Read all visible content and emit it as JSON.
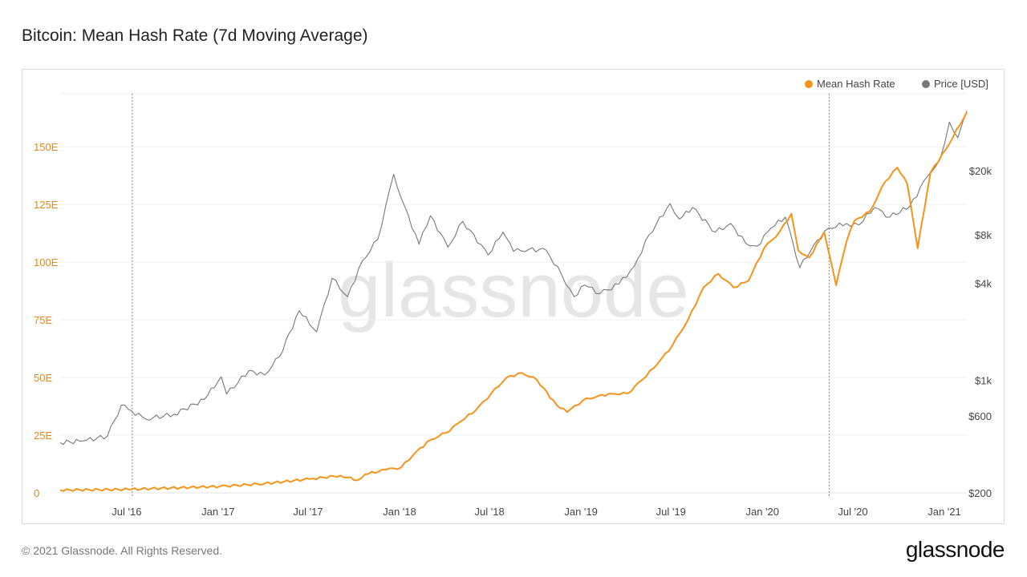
{
  "title": "Bitcoin: Mean Hash Rate (7d Moving Average)",
  "footer": "© 2021 Glassnode. All Rights Reserved.",
  "logo": "glassnode",
  "watermark": "glassnode",
  "chart_data": {
    "type": "line",
    "title": "Bitcoin: Mean Hash Rate (7d Moving Average)",
    "x_range": [
      "2016-02-15",
      "2021-02-12"
    ],
    "x_ticks": [
      {
        "date": "2016-07-01",
        "label": "Jul '16"
      },
      {
        "date": "2017-01-01",
        "label": "Jan '17"
      },
      {
        "date": "2017-07-01",
        "label": "Jul '17"
      },
      {
        "date": "2018-01-01",
        "label": "Jan '18"
      },
      {
        "date": "2018-07-01",
        "label": "Jul '18"
      },
      {
        "date": "2019-01-01",
        "label": "Jan '19"
      },
      {
        "date": "2019-07-01",
        "label": "Jul '19"
      },
      {
        "date": "2020-01-01",
        "label": "Jan '20"
      },
      {
        "date": "2020-07-01",
        "label": "Jul '20"
      },
      {
        "date": "2021-01-01",
        "label": "Jan '21"
      }
    ],
    "y_left": {
      "scale": "linear",
      "range": [
        0,
        173
      ],
      "ticks": [
        {
          "value": 0,
          "label": "0"
        },
        {
          "value": 25,
          "label": "25E"
        },
        {
          "value": 50,
          "label": "50E"
        },
        {
          "value": 75,
          "label": "75E"
        },
        {
          "value": 100,
          "label": "100E"
        },
        {
          "value": 125,
          "label": "125E"
        },
        {
          "value": 150,
          "label": "150E"
        }
      ],
      "color": "#f7931a"
    },
    "y_right": {
      "scale": "log",
      "range": [
        200,
        60000
      ],
      "ticks": [
        {
          "value": 200,
          "label": "$200"
        },
        {
          "value": 600,
          "label": "$600"
        },
        {
          "value": 1000,
          "label": "$1k"
        },
        {
          "value": 4000,
          "label": "$4k"
        },
        {
          "value": 8000,
          "label": "$8k"
        },
        {
          "value": 20000,
          "label": "$20k"
        }
      ],
      "color": "#555555"
    },
    "grid": true,
    "legend_position": "top-right",
    "vertical_markers": [
      "2016-07-09",
      "2020-05-11"
    ],
    "series": [
      {
        "name": "Mean Hash Rate",
        "axis": "left",
        "color": "#f7931a",
        "points": [
          [
            "2016-02-15",
            1.2
          ],
          [
            "2016-07-01",
            1.5
          ],
          [
            "2017-01-01",
            2.8
          ],
          [
            "2017-04-01",
            4
          ],
          [
            "2017-07-01",
            6
          ],
          [
            "2017-09-01",
            7.5
          ],
          [
            "2017-10-05",
            5.5
          ],
          [
            "2017-10-20",
            8
          ],
          [
            "2017-12-01",
            10
          ],
          [
            "2018-01-01",
            11
          ],
          [
            "2018-02-01",
            18
          ],
          [
            "2018-03-01",
            23
          ],
          [
            "2018-04-01",
            26
          ],
          [
            "2018-05-01",
            31
          ],
          [
            "2018-06-01",
            36
          ],
          [
            "2018-07-01",
            43
          ],
          [
            "2018-08-01",
            50
          ],
          [
            "2018-09-01",
            52
          ],
          [
            "2018-10-01",
            49
          ],
          [
            "2018-11-10",
            38
          ],
          [
            "2018-12-01",
            35
          ],
          [
            "2019-01-01",
            40
          ],
          [
            "2019-02-01",
            42
          ],
          [
            "2019-03-01",
            43
          ],
          [
            "2019-04-01",
            43
          ],
          [
            "2019-05-01",
            49
          ],
          [
            "2019-06-01",
            56
          ],
          [
            "2019-07-01",
            64
          ],
          [
            "2019-08-01",
            75
          ],
          [
            "2019-09-01",
            89
          ],
          [
            "2019-10-01",
            95
          ],
          [
            "2019-11-01",
            89
          ],
          [
            "2019-12-01",
            92
          ],
          [
            "2020-01-01",
            106
          ],
          [
            "2020-02-01",
            113
          ],
          [
            "2020-02-25",
            121
          ],
          [
            "2020-03-10",
            105
          ],
          [
            "2020-04-01",
            102
          ],
          [
            "2020-05-01",
            113
          ],
          [
            "2020-05-25",
            90
          ],
          [
            "2020-06-15",
            109
          ],
          [
            "2020-07-01",
            118
          ],
          [
            "2020-08-01",
            122
          ],
          [
            "2020-09-01",
            135
          ],
          [
            "2020-09-25",
            141
          ],
          [
            "2020-10-15",
            134
          ],
          [
            "2020-11-05",
            106
          ],
          [
            "2020-12-01",
            139
          ],
          [
            "2021-01-01",
            149
          ],
          [
            "2021-02-12",
            165
          ]
        ]
      },
      {
        "name": "Price [USD]",
        "axis": "right",
        "color": "#777777",
        "points": [
          [
            "2016-02-15",
            410
          ],
          [
            "2016-04-01",
            420
          ],
          [
            "2016-05-20",
            450
          ],
          [
            "2016-06-17",
            700
          ],
          [
            "2016-07-01",
            660
          ],
          [
            "2016-08-05",
            575
          ],
          [
            "2016-10-01",
            615
          ],
          [
            "2016-12-01",
            760
          ],
          [
            "2017-01-04",
            1050
          ],
          [
            "2017-01-15",
            820
          ],
          [
            "2017-03-01",
            1150
          ],
          [
            "2017-04-01",
            1080
          ],
          [
            "2017-05-01",
            1400
          ],
          [
            "2017-06-10",
            2700
          ],
          [
            "2017-07-15",
            2000
          ],
          [
            "2017-08-15",
            4300
          ],
          [
            "2017-09-15",
            3300
          ],
          [
            "2017-10-15",
            5500
          ],
          [
            "2017-11-15",
            7500
          ],
          [
            "2017-12-17",
            19000
          ],
          [
            "2018-01-01",
            13500
          ],
          [
            "2018-02-06",
            7000
          ],
          [
            "2018-03-01",
            10500
          ],
          [
            "2018-04-05",
            6700
          ],
          [
            "2018-05-05",
            9700
          ],
          [
            "2018-06-25",
            6000
          ],
          [
            "2018-07-25",
            8300
          ],
          [
            "2018-08-15",
            6300
          ],
          [
            "2018-09-15",
            6500
          ],
          [
            "2018-10-20",
            6400
          ],
          [
            "2018-11-20",
            4500
          ],
          [
            "2018-12-15",
            3300
          ],
          [
            "2019-01-05",
            3900
          ],
          [
            "2019-02-05",
            3450
          ],
          [
            "2019-03-15",
            3950
          ],
          [
            "2019-04-15",
            5100
          ],
          [
            "2019-05-15",
            8000
          ],
          [
            "2019-06-26",
            12500
          ],
          [
            "2019-07-15",
            10000
          ],
          [
            "2019-08-10",
            11800
          ],
          [
            "2019-09-25",
            8300
          ],
          [
            "2019-10-26",
            9400
          ],
          [
            "2019-11-25",
            7100
          ],
          [
            "2019-12-18",
            6800
          ],
          [
            "2020-01-15",
            8800
          ],
          [
            "2020-02-13",
            10300
          ],
          [
            "2020-03-13",
            5000
          ],
          [
            "2020-04-10",
            6900
          ],
          [
            "2020-05-10",
            8800
          ],
          [
            "2020-06-15",
            9400
          ],
          [
            "2020-07-10",
            9200
          ],
          [
            "2020-08-10",
            11800
          ],
          [
            "2020-09-10",
            10300
          ],
          [
            "2020-10-20",
            12000
          ],
          [
            "2020-11-25",
            18500
          ],
          [
            "2020-12-20",
            23500
          ],
          [
            "2021-01-08",
            40000
          ],
          [
            "2021-01-25",
            32000
          ],
          [
            "2021-02-12",
            47000
          ]
        ]
      }
    ]
  }
}
